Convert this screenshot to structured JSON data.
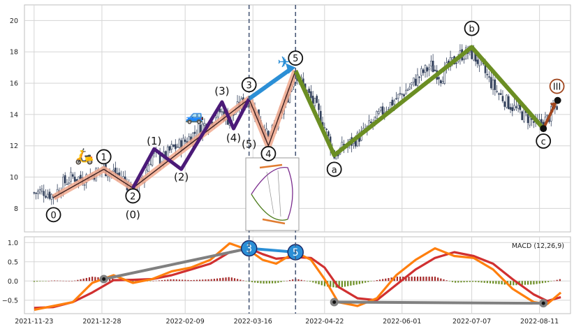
{
  "colors": {
    "grid": "#d5d5d5",
    "panel_bg": "#ffffff",
    "frame": "#bfbfbf",
    "candle": "#33415c",
    "overlay_pink": "#f1a98e",
    "thin_path": "#3a1f1f",
    "purple": "#4b1a78",
    "olive": "#6b8e23",
    "blue": "#2b8fd6",
    "macd": "#ff7f0e",
    "signal": "#d03030",
    "hist_pos": "#a52a2a",
    "hist_neg": "#6b8e23",
    "gray_link": "#808080",
    "dashed": "#4a5a78",
    "brown": "#a0461e"
  },
  "chart_data": {
    "type": "candlestick",
    "title": "",
    "price_panel": {
      "ylim": [
        6.5,
        21
      ],
      "yticks": [
        "8",
        "10",
        "12",
        "14",
        "16",
        "18",
        "20"
      ],
      "close_path": [
        [
          "2021-11-23",
          9.0
        ],
        [
          "2021-11-28",
          9.1
        ],
        [
          "2021-12-03",
          8.8
        ],
        [
          "2021-12-08",
          9.6
        ],
        [
          "2021-12-13",
          10.0
        ],
        [
          "2021-12-18",
          9.9
        ],
        [
          "2021-12-23",
          10.2
        ],
        [
          "2021-12-29",
          10.5
        ],
        [
          "2022-01-03",
          10.3
        ],
        [
          "2022-01-08",
          9.9
        ],
        [
          "2022-01-13",
          9.1
        ],
        [
          "2022-01-18",
          9.8
        ],
        [
          "2022-01-23",
          11.5
        ],
        [
          "2022-01-28",
          11.1
        ],
        [
          "2022-02-02",
          11.8
        ],
        [
          "2022-02-07",
          12.1
        ],
        [
          "2022-02-12",
          12.6
        ],
        [
          "2022-02-17",
          13.2
        ],
        [
          "2022-02-22",
          13.6
        ],
        [
          "2022-02-27",
          14.2
        ],
        [
          "2022-03-04",
          13.6
        ],
        [
          "2022-03-09",
          14.6
        ],
        [
          "2022-03-14",
          14.9
        ],
        [
          "2022-03-19",
          13.8
        ],
        [
          "2022-03-24",
          12.4
        ],
        [
          "2022-03-29",
          13.6
        ],
        [
          "2022-04-03",
          15.2
        ],
        [
          "2022-04-07",
          16.8
        ],
        [
          "2022-04-12",
          15.6
        ],
        [
          "2022-04-17",
          14.6
        ],
        [
          "2022-04-22",
          13.2
        ],
        [
          "2022-04-27",
          11.4
        ],
        [
          "2022-05-02",
          11.9
        ],
        [
          "2022-05-07",
          12.3
        ],
        [
          "2022-05-12",
          12.8
        ],
        [
          "2022-05-17",
          13.5
        ],
        [
          "2022-05-22",
          14.2
        ],
        [
          "2022-05-27",
          14.8
        ],
        [
          "2022-06-01",
          15.3
        ],
        [
          "2022-06-06",
          15.9
        ],
        [
          "2022-06-11",
          16.6
        ],
        [
          "2022-06-16",
          17.1
        ],
        [
          "2022-06-21",
          16.4
        ],
        [
          "2022-06-26",
          17.2
        ],
        [
          "2022-07-01",
          17.8
        ],
        [
          "2022-07-06",
          18.0
        ],
        [
          "2022-07-11",
          17.3
        ],
        [
          "2022-07-16",
          16.2
        ],
        [
          "2022-07-21",
          15.3
        ],
        [
          "2022-07-26",
          14.7
        ],
        [
          "2022-07-31",
          14.2
        ],
        [
          "2022-08-05",
          13.8
        ],
        [
          "2022-08-10",
          13.3
        ],
        [
          "2022-08-15",
          13.7
        ],
        [
          "2022-08-20",
          14.6
        ]
      ],
      "wave_overlay": [
        [
          "2021-12-03",
          8.7
        ],
        [
          "2021-12-29",
          10.5
        ],
        [
          "2022-01-13",
          9.3
        ],
        [
          "2022-03-14",
          15.0
        ],
        [
          "2022-03-24",
          12.0
        ],
        [
          "2022-04-07",
          16.8
        ]
      ],
      "subwaves": [
        [
          "2022-01-13",
          9.3
        ],
        [
          "2022-01-24",
          11.8
        ],
        [
          "2022-02-07",
          10.5
        ],
        [
          "2022-02-28",
          14.8
        ],
        [
          "2022-03-06",
          13.1
        ],
        [
          "2022-03-14",
          15.0
        ]
      ],
      "correction": [
        [
          "2022-04-07",
          16.8
        ],
        [
          "2022-04-27",
          11.4
        ],
        [
          "2022-07-07",
          18.3
        ],
        [
          "2022-08-13",
          13.1
        ]
      ],
      "projection_blue": [
        [
          "2022-03-14",
          15.0
        ],
        [
          "2022-04-07",
          17.0
        ]
      ],
      "projection_brown": [
        [
          "2022-08-13",
          13.1
        ],
        [
          "2022-08-20",
          14.8
        ]
      ],
      "wave_labels": [
        {
          "text": "0",
          "date": "2021-12-03",
          "y": 7.6,
          "circled": true
        },
        {
          "text": "1",
          "date": "2021-12-29",
          "y": 11.3,
          "circled": true
        },
        {
          "text": "2",
          "date": "2022-01-13",
          "y": 8.8,
          "circled": true
        },
        {
          "text": "(0)",
          "date": "2022-01-13",
          "y": 7.6,
          "circled": false
        },
        {
          "text": "(1)",
          "date": "2022-01-24",
          "y": 12.3,
          "circled": false
        },
        {
          "text": "(2)",
          "date": "2022-02-07",
          "y": 10.0,
          "circled": false
        },
        {
          "text": "(3)",
          "date": "2022-02-28",
          "y": 15.5,
          "circled": false
        },
        {
          "text": "(4)",
          "date": "2022-03-06",
          "y": 12.5,
          "circled": false
        },
        {
          "text": "(5)",
          "date": "2022-03-14",
          "y": 12.1,
          "circled": false
        },
        {
          "text": "3",
          "date": "2022-03-14",
          "y": 15.9,
          "circled": true
        },
        {
          "text": "4",
          "date": "2022-03-24",
          "y": 11.5,
          "circled": true
        },
        {
          "text": "5",
          "date": "2022-04-07",
          "y": 17.6,
          "circled": true
        },
        {
          "text": "a",
          "date": "2022-04-27",
          "y": 10.5,
          "circled": true
        },
        {
          "text": "b",
          "date": "2022-07-07",
          "y": 19.5,
          "circled": true
        },
        {
          "text": "c",
          "date": "2022-08-13",
          "y": 12.3,
          "circled": true
        },
        {
          "text": "III",
          "date": "2022-08-20",
          "y": 15.8,
          "circled": true
        }
      ]
    },
    "macd_panel": {
      "legend": "MACD (12,26,9)",
      "ylim": [
        -0.85,
        1.15
      ],
      "yticks": [
        "1.0",
        "0.5",
        "0.0",
        "−0.5"
      ],
      "macd": [
        [
          "2021-11-23",
          -0.75
        ],
        [
          "2021-12-03",
          -0.65
        ],
        [
          "2021-12-13",
          -0.55
        ],
        [
          "2021-12-23",
          -0.05
        ],
        [
          "2022-01-03",
          0.15
        ],
        [
          "2022-01-13",
          -0.05
        ],
        [
          "2022-01-23",
          0.05
        ],
        [
          "2022-02-02",
          0.25
        ],
        [
          "2022-02-12",
          0.35
        ],
        [
          "2022-02-22",
          0.55
        ],
        [
          "2022-03-04",
          0.98
        ],
        [
          "2022-03-14",
          0.8
        ],
        [
          "2022-03-21",
          0.55
        ],
        [
          "2022-03-28",
          0.45
        ],
        [
          "2022-04-07",
          0.75
        ],
        [
          "2022-04-15",
          0.55
        ],
        [
          "2022-04-22",
          0.05
        ],
        [
          "2022-04-29",
          -0.55
        ],
        [
          "2022-05-09",
          -0.65
        ],
        [
          "2022-05-19",
          -0.45
        ],
        [
          "2022-05-29",
          0.15
        ],
        [
          "2022-06-08",
          0.55
        ],
        [
          "2022-06-18",
          0.85
        ],
        [
          "2022-06-28",
          0.65
        ],
        [
          "2022-07-08",
          0.6
        ],
        [
          "2022-07-18",
          0.3
        ],
        [
          "2022-07-28",
          -0.2
        ],
        [
          "2022-08-08",
          -0.55
        ],
        [
          "2022-08-15",
          -0.6
        ],
        [
          "2022-08-22",
          -0.3
        ]
      ],
      "signal": [
        [
          "2021-11-23",
          -0.7
        ],
        [
          "2021-12-03",
          -0.68
        ],
        [
          "2021-12-13",
          -0.55
        ],
        [
          "2021-12-23",
          -0.3
        ],
        [
          "2022-01-03",
          0.02
        ],
        [
          "2022-01-13",
          0.03
        ],
        [
          "2022-01-23",
          0.05
        ],
        [
          "2022-02-02",
          0.15
        ],
        [
          "2022-02-12",
          0.3
        ],
        [
          "2022-02-22",
          0.45
        ],
        [
          "2022-03-04",
          0.75
        ],
        [
          "2022-03-14",
          0.85
        ],
        [
          "2022-03-21",
          0.7
        ],
        [
          "2022-03-28",
          0.58
        ],
        [
          "2022-04-07",
          0.62
        ],
        [
          "2022-04-15",
          0.6
        ],
        [
          "2022-04-22",
          0.35
        ],
        [
          "2022-04-29",
          -0.15
        ],
        [
          "2022-05-09",
          -0.45
        ],
        [
          "2022-05-19",
          -0.5
        ],
        [
          "2022-05-29",
          -0.1
        ],
        [
          "2022-06-08",
          0.3
        ],
        [
          "2022-06-18",
          0.6
        ],
        [
          "2022-06-28",
          0.75
        ],
        [
          "2022-07-08",
          0.65
        ],
        [
          "2022-07-18",
          0.45
        ],
        [
          "2022-07-28",
          0.05
        ],
        [
          "2022-08-08",
          -0.35
        ],
        [
          "2022-08-15",
          -0.52
        ],
        [
          "2022-08-22",
          -0.42
        ]
      ],
      "divergence_links": [
        [
          [
            "2021-12-29",
            0.05
          ],
          [
            "2022-03-14",
            0.85
          ]
        ],
        [
          [
            "2022-04-27",
            -0.55
          ],
          [
            "2022-08-13",
            -0.58
          ]
        ]
      ],
      "markers": [
        {
          "text": "3",
          "date": "2022-03-14",
          "y": 0.85
        },
        {
          "text": "5",
          "date": "2022-04-07",
          "y": 0.75
        }
      ]
    },
    "vlines": [
      "2022-03-14",
      "2022-04-07"
    ],
    "xaxis": {
      "start": "2021-11-18",
      "end": "2022-08-27",
      "ticks": [
        "2021-11-23",
        "2021-12-28",
        "2022-02-09",
        "2022-03-16",
        "2022-04-22",
        "2022-06-01",
        "2022-07-07",
        "2022-08-11"
      ]
    }
  }
}
